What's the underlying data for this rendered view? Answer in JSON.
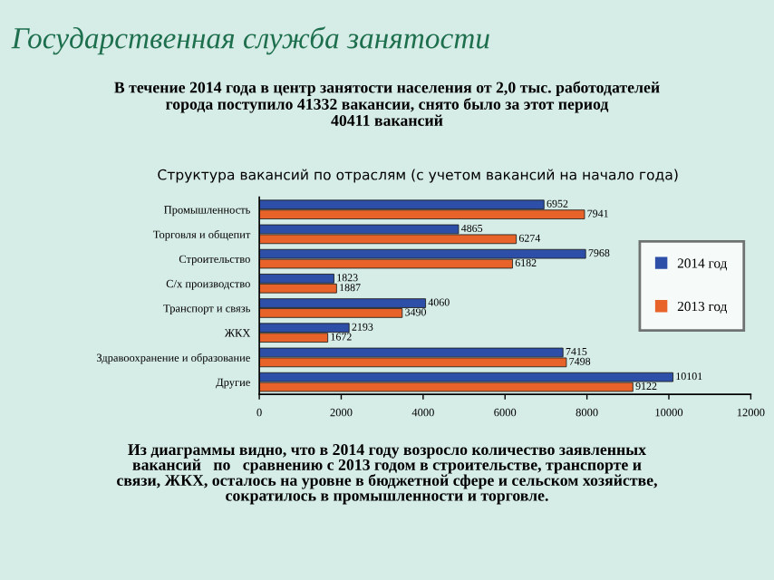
{
  "chart_data": {
    "type": "bar",
    "orientation": "horizontal",
    "title": "Структура вакансий по отраслям (с учетом вакансий на начало года)",
    "categories": [
      "Промышленность",
      "Торговля и общепит",
      "Строительство",
      "С/х производство",
      "Транспорт и связь",
      "ЖКХ",
      "Здравоохранение и образование",
      "Другие"
    ],
    "series": [
      {
        "name": "2014 год",
        "color": "#2e4fa8",
        "values": [
          6952,
          4865,
          7968,
          1823,
          4060,
          2193,
          7415,
          10101
        ]
      },
      {
        "name": "2013 год",
        "color": "#e8632a",
        "values": [
          7941,
          6274,
          6182,
          1887,
          3490,
          1672,
          7498,
          9122
        ]
      }
    ],
    "xlim": [
      0,
      12000
    ],
    "xticks": [
      0,
      2000,
      4000,
      6000,
      8000,
      10000,
      12000
    ],
    "data_labels": true,
    "legend": "right",
    "grid": false,
    "annotations": [
      "Государственная служба занятости",
      "В течение 2014 года в центр занятости населения от 2,0 тыс. работодателей\nгорода поступило 41332 вакансии, снято было за этот период\n40411 вакансий",
      "Из диаграммы видно, что в 2014 году возросло количество заявленных\nвакансий   по   сравнению с 2013 годом в строительстве, транспорте и\nсвязи, ЖКХ, осталось на уровне в бюджетной сфере и сельском хозяйстве,\nсократилось в промышленности и торговле."
    ]
  }
}
